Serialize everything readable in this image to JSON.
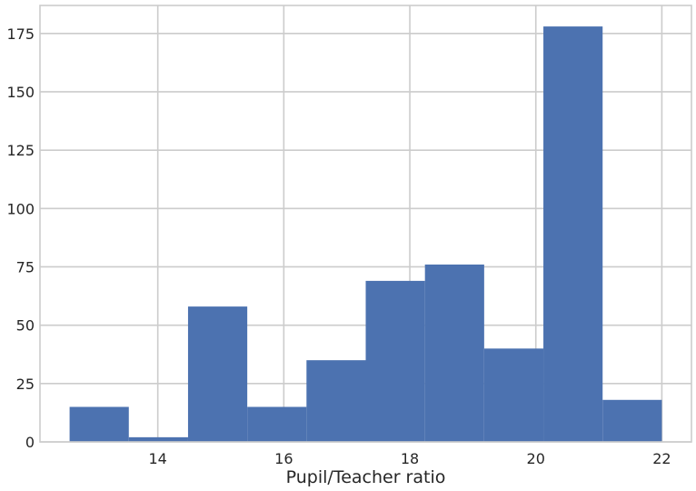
{
  "chart_data": {
    "type": "bar",
    "title": "",
    "xlabel": "Pupil/Teacher ratio",
    "ylabel": "",
    "xlim": [
      12.13,
      22.47
    ],
    "ylim": [
      0,
      187
    ],
    "grid": true,
    "legend": "none",
    "bar_color": "#4c72b0",
    "grid_color": "#cccccc",
    "x_ticks": [
      14,
      16,
      18,
      20,
      22
    ],
    "x_tick_labels": [
      "14",
      "16",
      "18",
      "20",
      "22"
    ],
    "y_ticks": [
      0,
      25,
      50,
      75,
      100,
      125,
      150,
      175
    ],
    "y_tick_labels": [
      "0",
      "25",
      "50",
      "75",
      "100",
      "125",
      "150",
      "175"
    ],
    "bins": [
      {
        "start": 12.6,
        "end": 13.54,
        "value": 15
      },
      {
        "start": 13.54,
        "end": 14.48,
        "value": 2
      },
      {
        "start": 14.48,
        "end": 15.42,
        "value": 58
      },
      {
        "start": 15.42,
        "end": 16.36,
        "value": 15
      },
      {
        "start": 16.36,
        "end": 17.3,
        "value": 35
      },
      {
        "start": 17.3,
        "end": 18.24,
        "value": 69
      },
      {
        "start": 18.24,
        "end": 19.18,
        "value": 76
      },
      {
        "start": 19.18,
        "end": 20.12,
        "value": 40
      },
      {
        "start": 20.12,
        "end": 21.06,
        "value": 178
      },
      {
        "start": 21.06,
        "end": 22.0,
        "value": 18
      }
    ]
  }
}
